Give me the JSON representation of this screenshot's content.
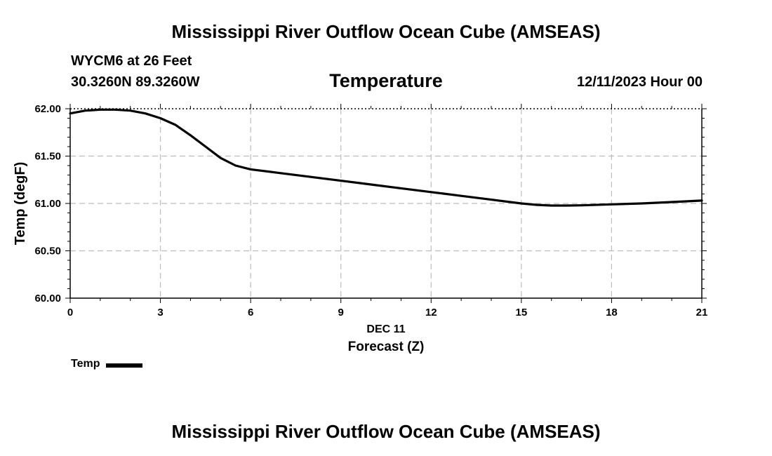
{
  "header": {
    "title": "Mississippi River Outflow Ocean Cube (AMSEAS)",
    "station": "WYCM6 at 26 Feet",
    "coordinates": "30.3260N  89.3260W",
    "run_time": "12/11/2023 Hour 00"
  },
  "footer": {
    "title": "Mississippi River Outflow Ocean Cube (AMSEAS)"
  },
  "legend": {
    "label": "Temp"
  },
  "chart_data": {
    "type": "line",
    "title": "Temperature",
    "xlabel": "Forecast (Z)",
    "xsublabel": "DEC 11",
    "ylabel": "Temp (degF)",
    "xlim": [
      0,
      21
    ],
    "ylim": [
      60.0,
      62.0
    ],
    "x_ticks": [
      0,
      3,
      6,
      9,
      12,
      15,
      18,
      21
    ],
    "x_tick_labels": [
      "0",
      "3",
      "6",
      "9",
      "12",
      "15",
      "18",
      "21"
    ],
    "y_ticks": [
      60.0,
      60.5,
      61.0,
      61.5,
      62.0
    ],
    "y_tick_labels": [
      "60.00",
      "60.50",
      "61.00",
      "61.50",
      "62.00"
    ],
    "grid": true,
    "color": "#000000",
    "series": [
      {
        "name": "Temp",
        "x": [
          0,
          0.5,
          1,
          1.5,
          2,
          2.5,
          3,
          3.5,
          4,
          4.5,
          5,
          5.5,
          6,
          7,
          8,
          9,
          10,
          11,
          12,
          13,
          14,
          15,
          15.5,
          16,
          16.5,
          17,
          18,
          19,
          20,
          21
        ],
        "values": [
          61.95,
          61.98,
          61.99,
          61.99,
          61.98,
          61.95,
          61.9,
          61.83,
          61.72,
          61.6,
          61.48,
          61.4,
          61.36,
          61.32,
          61.28,
          61.24,
          61.2,
          61.16,
          61.12,
          61.08,
          61.04,
          61.0,
          60.985,
          60.978,
          60.978,
          60.98,
          60.99,
          61.0,
          61.015,
          61.03
        ]
      }
    ]
  }
}
